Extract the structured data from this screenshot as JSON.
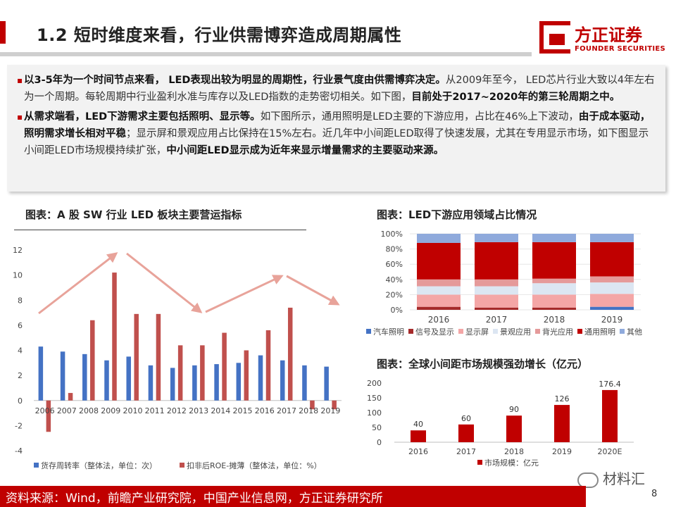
{
  "header": {
    "title": "1.2 短时维度来看，行业供需博弈造成周期属性",
    "logo_cn": "方正证券",
    "logo_en": "FOUNDER SECURITIES"
  },
  "summary": {
    "p1": {
      "bold1": "以3-5年为一个时间节点来看， LED表现出较为明显的周期性，行业景气度由供需博弈决定。",
      "normal1": "从2009年至今， LED芯片行业大致以4年左右为一个周期。每轮周期中行业盈利水准与库存以及LED指数的走势密切相关。如下图，",
      "bold2": "目前处于2017~2020年的第三轮周期之中。"
    },
    "p2": {
      "bold1": "从需求端看，LED下游需求主要包括照明、显示等。",
      "normal1": "如下图所示，通用照明是LED主要的下游应用，占比在46%上下波动，",
      "bold2": "由于成本驱动，照明需求增长相对平稳",
      "normal2": "；显示屏和景观应用占比保持在15%左右。近几年中小间距LED取得了快速发展，尤其在专用显示市场，如下图显示小间距LED市场规模持续扩张，",
      "bold3": "中小间距LED显示成为近年来显示增量需求的主要驱动来源。"
    }
  },
  "chart_titles": {
    "left": "图表：A 股 SW 行业 LED 板块主要营运指标",
    "right_top": "图表：LED下游应用领域占比情况",
    "right_bottom": "图表：全球小间距市场规模强劲增长（亿元）"
  },
  "chart_data": [
    {
      "type": "bar",
      "categories": [
        "2006",
        "2007",
        "2008",
        "2009",
        "2010",
        "2011",
        "2012",
        "2013",
        "2014",
        "2015",
        "2016",
        "2017",
        "2018",
        "2019"
      ],
      "series": [
        {
          "name": "货存周转率（整体法，单位：次）",
          "color": "#4472c4",
          "values": [
            4.3,
            3.9,
            3.7,
            3.2,
            3.5,
            2.8,
            2.6,
            2.8,
            2.9,
            3.0,
            3.6,
            3.2,
            2.8,
            2.7
          ]
        },
        {
          "name": "扣非后ROE-摊薄（整体法，单位：%）",
          "color": "#c0504d",
          "values": [
            -2.5,
            0.6,
            6.4,
            10.2,
            6.9,
            6.9,
            4.4,
            4.4,
            5.4,
            4.0,
            5.6,
            7.4,
            -0.7,
            -0.7
          ]
        }
      ],
      "ylim": [
        -4,
        12
      ],
      "yticks": [
        -4,
        -2,
        0,
        2,
        4,
        6,
        8,
        10,
        12
      ],
      "trend_arrows": "up-down-up-down",
      "legend": "bottom"
    },
    {
      "type": "bar",
      "stacked": true,
      "categories": [
        "2016",
        "2017",
        "2018",
        "2019"
      ],
      "series": [
        {
          "name": "汽车照明",
          "color": "#4472c4",
          "values": [
            0,
            0,
            0,
            4
          ]
        },
        {
          "name": "信号及显示",
          "color": "#a52a2a",
          "values": [
            4,
            3,
            3,
            0
          ]
        },
        {
          "name": "显示屏",
          "color": "#f4a6a6",
          "values": [
            16,
            17,
            17,
            17
          ]
        },
        {
          "name": "景观应用",
          "color": "#dce6f2",
          "values": [
            11,
            11,
            15,
            15
          ]
        },
        {
          "name": "背光应用",
          "color": "#e59a9a",
          "values": [
            9,
            9,
            6,
            8
          ]
        },
        {
          "name": "通用照明",
          "color": "#c00000",
          "values": [
            48,
            49,
            48,
            45
          ]
        },
        {
          "name": "其他",
          "color": "#8faadc",
          "values": [
            12,
            11,
            11,
            11
          ]
        }
      ],
      "yticks": [
        "0%",
        "20%",
        "40%",
        "60%",
        "80%",
        "100%"
      ],
      "legend": "bottom"
    },
    {
      "type": "bar",
      "categories": [
        "2016",
        "2017",
        "2018",
        "2019",
        "2020E"
      ],
      "series": [
        {
          "name": "市场规模：亿元",
          "color": "#c00000",
          "values": [
            40,
            60,
            90,
            126,
            176.4
          ]
        }
      ],
      "data_labels": [
        "40",
        "60",
        "90",
        "126",
        "176.4"
      ],
      "ylim": [
        0,
        200
      ],
      "yticks": [
        0,
        50,
        100,
        150,
        200
      ],
      "legend": "bottom"
    }
  ],
  "footer": {
    "source": "资料来源：Wind，前瞻产业研究院，中国产业信息网，方正证券研究所",
    "page": "8",
    "watermark": "材料汇"
  }
}
